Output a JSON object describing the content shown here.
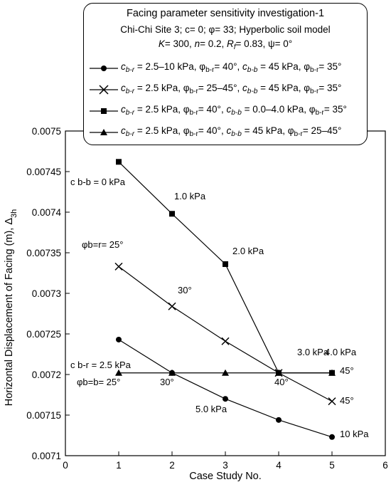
{
  "chart_data": {
    "type": "line",
    "title": "Facing parameter sensitivity investigation-1",
    "subtitle_line1": "Chi-Chi Site 3; c= 0; φ= 33; Hyperbolic soil model",
    "subtitle_line2": "K= 300, n= 0.2, Rf= 0.83, ψ= 0°",
    "xlabel": "Case Study No.",
    "ylabel": "Horizontal Displacement of Facing (m), Δ3h",
    "xlim": [
      0,
      6
    ],
    "ylim": [
      0.0071,
      0.0075
    ],
    "x_ticks": [
      "0",
      "1",
      "2",
      "3",
      "4",
      "5",
      "6"
    ],
    "y_ticks": [
      "0.0071",
      "0.00715",
      "0.0072",
      "0.00725",
      "0.0073",
      "0.00735",
      "0.0074",
      "0.00745",
      "0.0075"
    ],
    "x": [
      1,
      2,
      3,
      4,
      5
    ],
    "series": [
      {
        "name": "cb-r = 2.5–10 kPa, φb-r= 40°, cb-b= 45 kPa, φb-r= 35°",
        "marker": "circle",
        "values": [
          0.007243,
          0.007202,
          0.00717,
          0.007144,
          0.007123
        ]
      },
      {
        "name": "cb-r = 2.5 kPa, φb-r= 25–45°, cb-b= 45 kPa, φb-r= 35°",
        "marker": "x",
        "values": [
          0.007333,
          0.007284,
          0.007241,
          0.007202,
          0.007167
        ]
      },
      {
        "name": "cb-r = 2.5 kPa, φb-r= 40°, cb-b= 0.0–4.0 kPa, φb-r= 35°",
        "marker": "square",
        "values": [
          0.007462,
          0.007398,
          0.007336,
          0.007202,
          0.007202
        ]
      },
      {
        "name": "cb-r = 2.5 kPa, φb-r= 40°, cb-b= 45 kPa, φb-r= 25–45°",
        "marker": "triangle",
        "values": [
          0.007202,
          0.007202,
          0.007202,
          0.007202,
          0.007202
        ]
      }
    ],
    "annotations": {
      "cbb_0": "c b-b = 0 kPa",
      "cbb_1": "1.0 kPa",
      "cbb_2": "2.0 kPa",
      "cbb_3": "3.0 kPa",
      "cbb_4": "4.0 kPa",
      "phibr_25": "φb=r= 25°",
      "phibr_30": "30°",
      "phibr_40": "40°",
      "phibr_45": "45°",
      "cbr_25": "c b-r = 2.5 kPa",
      "cbr_5": "5.0 kPa",
      "cbr_10": "10 kPa",
      "phibb_25": "φb=b= 25°",
      "phibb_30": "30°",
      "phibb_45": "45°"
    },
    "legend_position": "top",
    "grid": false
  }
}
